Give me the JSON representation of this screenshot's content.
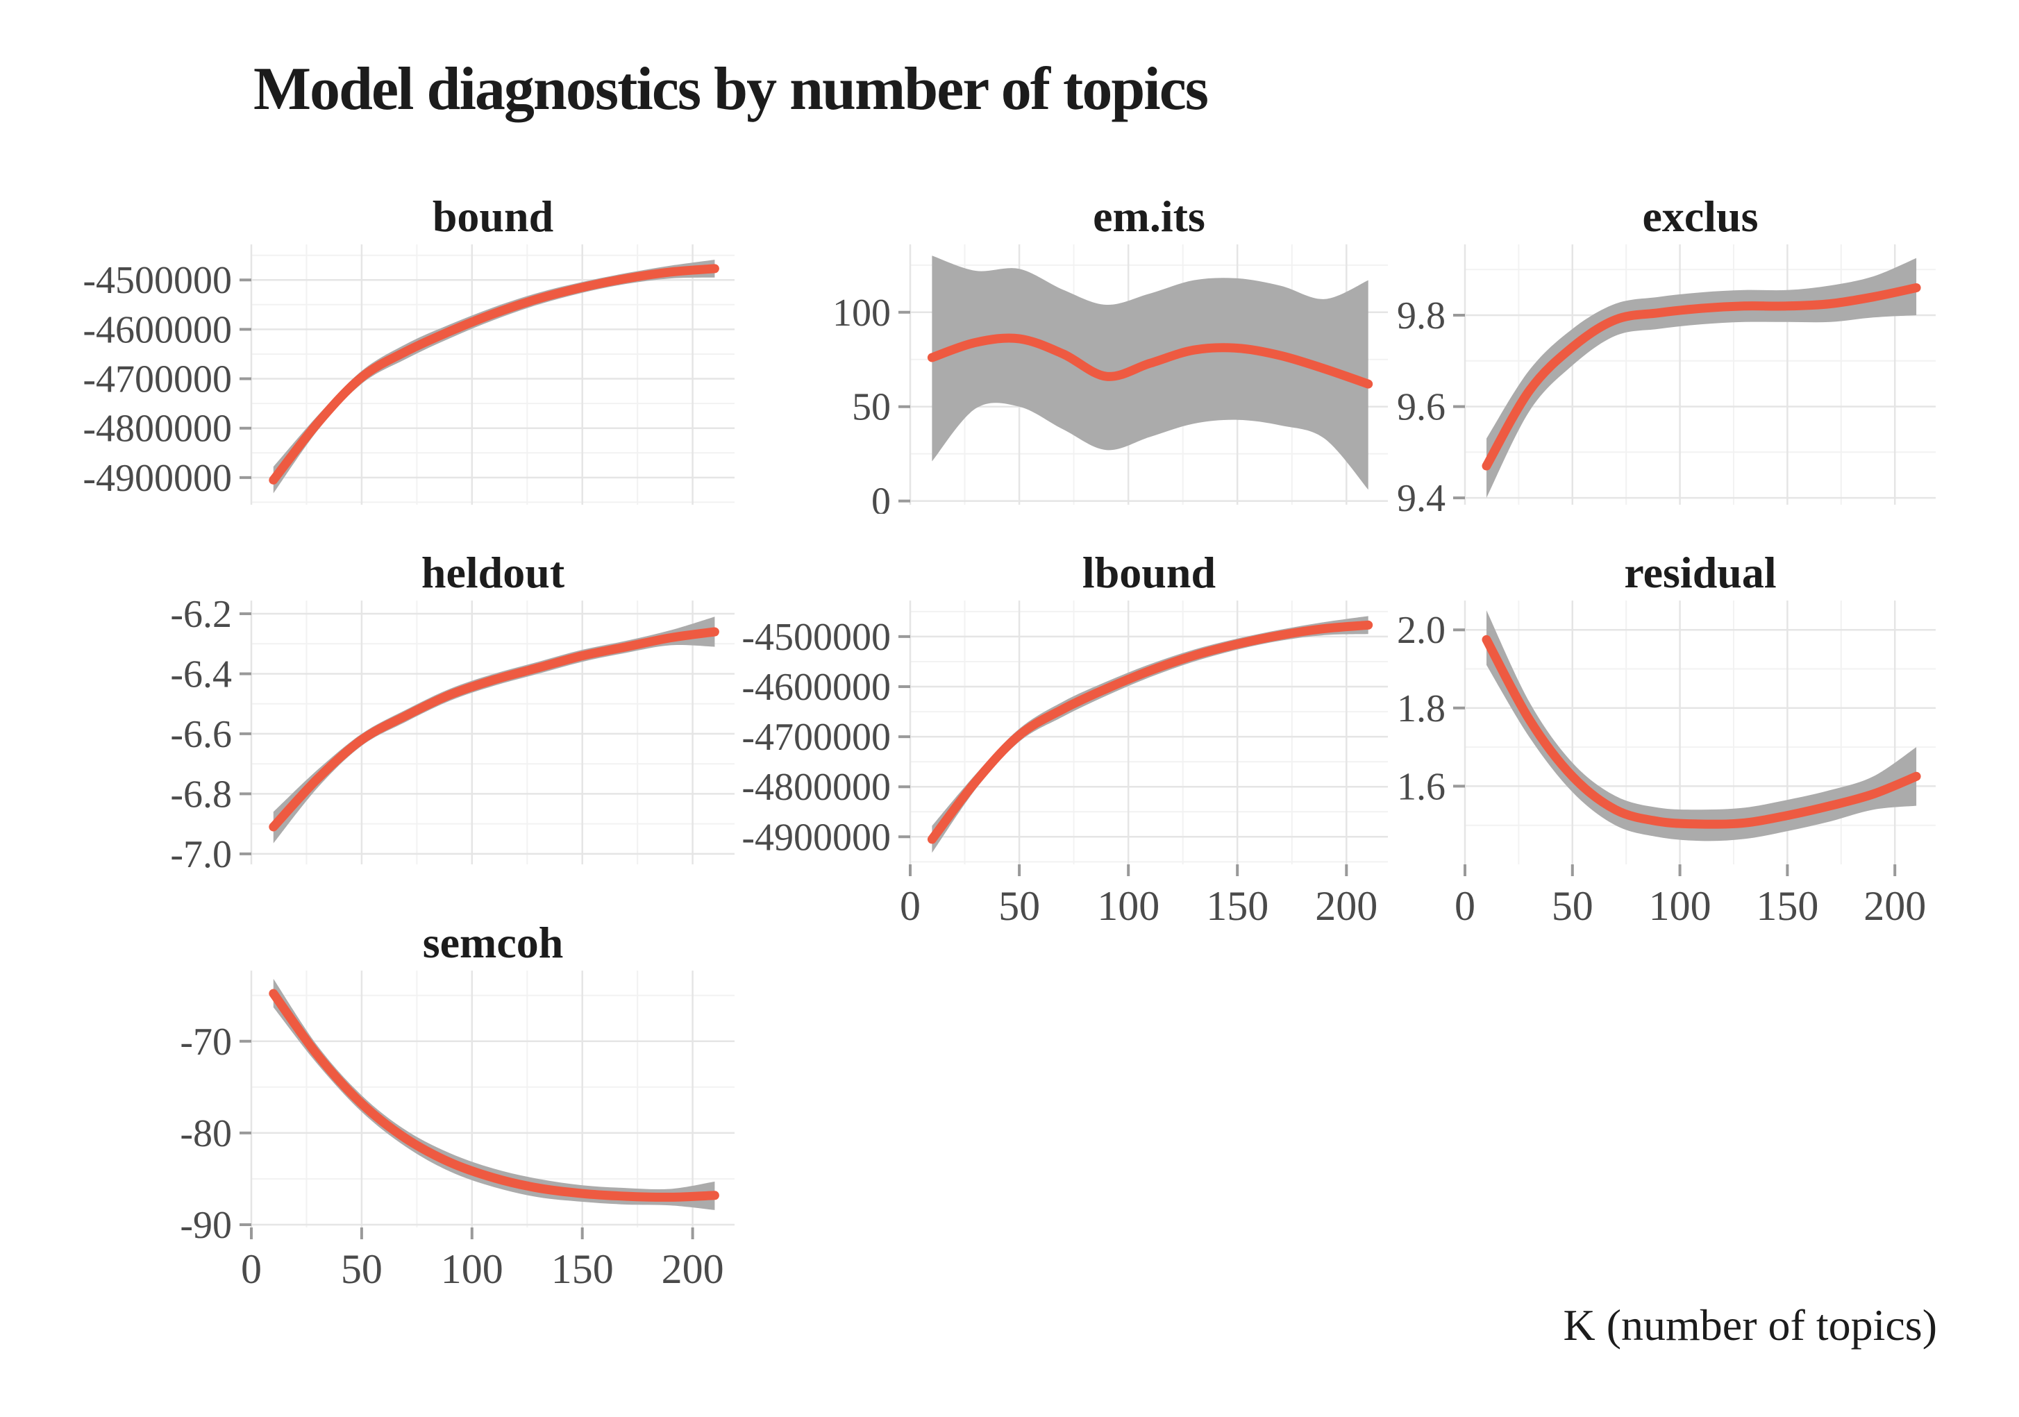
{
  "page": {
    "title": "Model diagnostics by number of topics",
    "x_axis_label": "K (number of topics)"
  },
  "colors": {
    "line": "#EE5A41",
    "ribbon": "#ABABAB",
    "grid_major": "#E5E5E5",
    "grid_minor": "#F2F2F2",
    "tick": "#999999",
    "axis_text": "#4A4A4A",
    "title_text": "#1C1C1C",
    "background": "#FFFFFF"
  },
  "chart_data": [
    {
      "type": "line",
      "name": "bound",
      "x": [
        10,
        30,
        50,
        70,
        90,
        110,
        130,
        150,
        170,
        190,
        210
      ],
      "series": [
        {
          "name": "smooth",
          "values": [
            -4905000,
            -4790000,
            -4697000,
            -4645000,
            -4604000,
            -4568000,
            -4538000,
            -4515000,
            -4497000,
            -4484000,
            -4477000
          ]
        }
      ],
      "ribbon": {
        "upper": [
          -4878000,
          -4775000,
          -4684000,
          -4630000,
          -4590000,
          -4555000,
          -4526000,
          -4504000,
          -4486000,
          -4471000,
          -4459000
        ],
        "lower": [
          -4932000,
          -4805000,
          -4710000,
          -4660000,
          -4618000,
          -4581000,
          -4550000,
          -4526000,
          -4508000,
          -4497000,
          -4495000
        ]
      },
      "xlim": [
        0,
        219
      ],
      "ylim": [
        -4955000,
        -4428000
      ],
      "xticks": [
        0,
        50,
        100,
        150,
        200
      ],
      "xtick_labels": [
        "0",
        "50",
        "100",
        "150",
        "200"
      ],
      "yticks": [
        -4900000,
        -4800000,
        -4700000,
        -4600000,
        -4500000
      ],
      "ytick_labels": [
        "-4900000",
        "-4800000",
        "-4700000",
        "-4600000",
        "-4500000"
      ],
      "show_x_axis": false,
      "grid": true,
      "legend": "none"
    },
    {
      "type": "line",
      "name": "em.its",
      "x": [
        10,
        30,
        50,
        70,
        90,
        110,
        130,
        150,
        170,
        190,
        210
      ],
      "series": [
        {
          "name": "smooth",
          "values": [
            76,
            84,
            86,
            78,
            66,
            73,
            80,
            81,
            77,
            70,
            62
          ]
        }
      ],
      "ribbon": {
        "upper": [
          130,
          122,
          123,
          112,
          104,
          110,
          117,
          118,
          114,
          107,
          117
        ],
        "lower": [
          21,
          49,
          50,
          38,
          27,
          34,
          41,
          43,
          40,
          33,
          6
        ]
      },
      "xlim": [
        0,
        219
      ],
      "ylim": [
        -2,
        136
      ],
      "xticks": [
        0,
        50,
        100,
        150,
        200
      ],
      "xtick_labels": [
        "0",
        "50",
        "100",
        "150",
        "200"
      ],
      "yticks": [
        0,
        50,
        100
      ],
      "ytick_labels": [
        "0",
        "50",
        "100"
      ],
      "show_x_axis": false,
      "grid": true,
      "legend": "none"
    },
    {
      "type": "line",
      "name": "exclus",
      "x": [
        10,
        30,
        50,
        70,
        90,
        110,
        130,
        150,
        170,
        190,
        210
      ],
      "series": [
        {
          "name": "smooth",
          "values": [
            9.47,
            9.635,
            9.73,
            9.79,
            9.805,
            9.815,
            9.82,
            9.82,
            9.825,
            9.84,
            9.86
          ]
        }
      ],
      "ribbon": {
        "upper": [
          9.53,
          9.68,
          9.77,
          9.825,
          9.84,
          9.85,
          9.855,
          9.855,
          9.865,
          9.885,
          9.925
        ],
        "lower": [
          9.4,
          9.59,
          9.69,
          9.755,
          9.77,
          9.78,
          9.785,
          9.785,
          9.785,
          9.795,
          9.8
        ]
      },
      "xlim": [
        0,
        219
      ],
      "ylim": [
        9.385,
        9.955
      ],
      "xticks": [
        0,
        50,
        100,
        150,
        200
      ],
      "xtick_labels": [
        "0",
        "50",
        "100",
        "150",
        "200"
      ],
      "yticks": [
        9.4,
        9.6,
        9.8
      ],
      "ytick_labels": [
        "9.4",
        "9.6",
        "9.8"
      ],
      "show_x_axis": false,
      "grid": true,
      "legend": "none"
    },
    {
      "type": "line",
      "name": "heldout",
      "x": [
        10,
        30,
        50,
        70,
        90,
        110,
        130,
        150,
        170,
        190,
        210
      ],
      "series": [
        {
          "name": "smooth",
          "values": [
            -6.91,
            -6.75,
            -6.62,
            -6.54,
            -6.47,
            -6.42,
            -6.38,
            -6.34,
            -6.31,
            -6.28,
            -6.26
          ]
        }
      ],
      "ribbon": {
        "upper": [
          -6.86,
          -6.72,
          -6.6,
          -6.52,
          -6.45,
          -6.4,
          -6.36,
          -6.32,
          -6.29,
          -6.255,
          -6.21
        ],
        "lower": [
          -6.965,
          -6.78,
          -6.64,
          -6.56,
          -6.49,
          -6.44,
          -6.4,
          -6.36,
          -6.33,
          -6.305,
          -6.31
        ]
      },
      "xlim": [
        0,
        219
      ],
      "ylim": [
        -7.035,
        -6.156
      ],
      "xticks": [
        0,
        50,
        100,
        150,
        200
      ],
      "xtick_labels": [
        "0",
        "50",
        "100",
        "150",
        "200"
      ],
      "yticks": [
        -7.0,
        -6.8,
        -6.6,
        -6.4,
        -6.2
      ],
      "ytick_labels": [
        "-7.0",
        "-6.8",
        "-6.6",
        "-6.4",
        "-6.2"
      ],
      "show_x_axis": false,
      "grid": true,
      "legend": "none"
    },
    {
      "type": "line",
      "name": "lbound",
      "x": [
        10,
        30,
        50,
        70,
        90,
        110,
        130,
        150,
        170,
        190,
        210
      ],
      "series": [
        {
          "name": "smooth",
          "values": [
            -4905000,
            -4790000,
            -4697000,
            -4645000,
            -4604000,
            -4568000,
            -4538000,
            -4515000,
            -4497000,
            -4484000,
            -4477000
          ]
        }
      ],
      "ribbon": {
        "upper": [
          -4878000,
          -4775000,
          -4684000,
          -4630000,
          -4590000,
          -4555000,
          -4526000,
          -4504000,
          -4486000,
          -4471000,
          -4459000
        ],
        "lower": [
          -4932000,
          -4805000,
          -4710000,
          -4660000,
          -4618000,
          -4581000,
          -4550000,
          -4526000,
          -4508000,
          -4497000,
          -4495000
        ]
      },
      "xlim": [
        0,
        219
      ],
      "ylim": [
        -4955000,
        -4428000
      ],
      "xticks": [
        0,
        50,
        100,
        150,
        200
      ],
      "xtick_labels": [
        "0",
        "50",
        "100",
        "150",
        "200"
      ],
      "yticks": [
        -4900000,
        -4800000,
        -4700000,
        -4600000,
        -4500000
      ],
      "ytick_labels": [
        "-4900000",
        "-4800000",
        "-4700000",
        "-4600000",
        "-4500000"
      ],
      "show_x_axis": true,
      "grid": true,
      "legend": "none"
    },
    {
      "type": "line",
      "name": "residual",
      "x": [
        10,
        30,
        50,
        70,
        90,
        110,
        130,
        150,
        170,
        190,
        210
      ],
      "series": [
        {
          "name": "smooth",
          "values": [
            1.975,
            1.77,
            1.625,
            1.54,
            1.51,
            1.503,
            1.506,
            1.525,
            1.55,
            1.58,
            1.625
          ]
        }
      ],
      "ribbon": {
        "upper": [
          2.05,
          1.815,
          1.66,
          1.575,
          1.545,
          1.54,
          1.545,
          1.565,
          1.59,
          1.625,
          1.7
        ],
        "lower": [
          1.91,
          1.725,
          1.585,
          1.5,
          1.47,
          1.46,
          1.465,
          1.485,
          1.51,
          1.54,
          1.55
        ]
      },
      "xlim": [
        0,
        219
      ],
      "ylim": [
        1.4,
        2.075
      ],
      "xticks": [
        0,
        50,
        100,
        150,
        200
      ],
      "xtick_labels": [
        "0",
        "50",
        "100",
        "150",
        "200"
      ],
      "yticks": [
        1.6,
        1.8,
        2.0
      ],
      "ytick_labels": [
        "1.6",
        "1.8",
        "2.0"
      ],
      "show_x_axis": true,
      "grid": true,
      "legend": "none"
    },
    {
      "type": "line",
      "name": "semcoh",
      "x": [
        10,
        30,
        50,
        70,
        90,
        110,
        130,
        150,
        170,
        190,
        210
      ],
      "series": [
        {
          "name": "smooth",
          "values": [
            -64.8,
            -71.5,
            -76.8,
            -80.6,
            -83.2,
            -84.9,
            -86.0,
            -86.6,
            -86.9,
            -87.0,
            -86.8
          ]
        }
      ],
      "ribbon": {
        "upper": [
          -63.2,
          -70.5,
          -75.9,
          -79.7,
          -82.2,
          -83.9,
          -85.0,
          -85.7,
          -86.0,
          -86.1,
          -85.3
        ],
        "lower": [
          -66.3,
          -72.5,
          -77.7,
          -81.5,
          -84.2,
          -85.9,
          -87.0,
          -87.5,
          -87.8,
          -87.9,
          -88.4
        ]
      },
      "xlim": [
        0,
        219
      ],
      "ylim": [
        -90.3,
        -62.3
      ],
      "xticks": [
        0,
        50,
        100,
        150,
        200
      ],
      "xtick_labels": [
        "0",
        "50",
        "100",
        "150",
        "200"
      ],
      "yticks": [
        -90,
        -80,
        -70
      ],
      "ytick_labels": [
        "-90",
        "-80",
        "-70"
      ],
      "show_x_axis": true,
      "grid": true,
      "legend": "none"
    }
  ]
}
